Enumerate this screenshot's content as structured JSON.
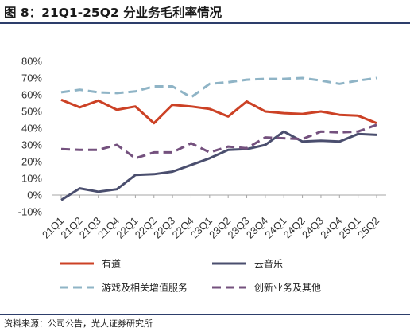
{
  "header": {
    "title": "图 8：21Q1-25Q2 分业务毛利率情况"
  },
  "footer": {
    "source": "资料来源：公司公告，光大证券研究所"
  },
  "colors": {
    "youdao": "#cc4125",
    "yunyinyue": "#4a4e6e",
    "youxi": "#8fb4c6",
    "chuangxin": "#74517e",
    "rule": "#2d3e6b"
  },
  "chart_data": {
    "type": "line",
    "title": "",
    "xlabel": "",
    "ylabel": "",
    "ylim": [
      -10,
      80
    ],
    "y_ticks": [
      "-10%",
      "0%",
      "10%",
      "20%",
      "30%",
      "40%",
      "50%",
      "60%",
      "70%",
      "80%"
    ],
    "grid": false,
    "legend_position": "bottom",
    "categories": [
      "21Q1",
      "21Q2",
      "21Q3",
      "21Q4",
      "22Q1",
      "22Q2",
      "22Q3",
      "22Q4",
      "23Q1",
      "23Q2",
      "23Q3",
      "23Q4",
      "24Q1",
      "24Q2",
      "24Q3",
      "24Q4",
      "25Q1",
      "25Q2"
    ],
    "series": [
      {
        "name": "有道",
        "style": "solid",
        "color": "#cc4125",
        "values": [
          57,
          52.5,
          56.5,
          51,
          53,
          43,
          54,
          53,
          51.5,
          47,
          56,
          50,
          49,
          48.5,
          50,
          48,
          47.5,
          43
        ]
      },
      {
        "name": "云音乐",
        "style": "solid",
        "color": "#4a4e6e",
        "values": [
          -3,
          4,
          2,
          3.5,
          12,
          12.5,
          14,
          18,
          22,
          27,
          27.5,
          30,
          38,
          32,
          32.5,
          32,
          36.5,
          36
        ]
      },
      {
        "name": "游戏及相关增值服务",
        "style": "dashed",
        "color": "#8fb4c6",
        "values": [
          61.5,
          63,
          61.5,
          61,
          62,
          65,
          65,
          58.5,
          66.5,
          67.5,
          69,
          69.5,
          69.5,
          70,
          68.5,
          66.5,
          68.5,
          70
        ]
      },
      {
        "name": "创新业务及其他",
        "style": "dashed",
        "color": "#74517e",
        "values": [
          27.5,
          27,
          27,
          30,
          22,
          25.5,
          25.5,
          31,
          25.5,
          29,
          28,
          34.5,
          34,
          33.5,
          38,
          37.5,
          38,
          42
        ]
      }
    ]
  }
}
